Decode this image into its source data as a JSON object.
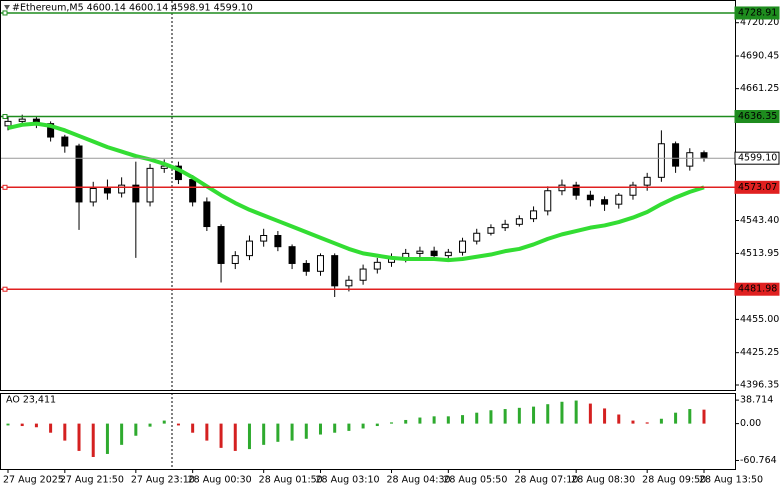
{
  "chart_data": [
    {
      "type": "candlestick",
      "title": "#Ethereum,M5  4600.14 4600.14 4598.91 4599.10",
      "categories": [
        "27 Aug 2025",
        null,
        null,
        null,
        "27 Aug 21:50",
        null,
        null,
        null,
        null,
        "27 Aug 23:10",
        null,
        null,
        null,
        "28 Aug 00:30",
        null,
        null,
        null,
        null,
        "28 Aug 01:50",
        null,
        null,
        null,
        "28 Aug 03:10",
        null,
        null,
        null,
        null,
        "28 Aug 04:30",
        null,
        null,
        null,
        "28 Aug 05:50",
        null,
        null,
        null,
        null,
        "28 Aug 07:10",
        null,
        null,
        null,
        "28 Aug 08:30",
        null,
        null,
        null,
        null,
        "28 Aug 09:50",
        null,
        null,
        null,
        "28 Aug 13:50"
      ],
      "open": [
        4628,
        4632,
        4634,
        4630,
        4618,
        4610,
        4560,
        4572,
        4568,
        4575,
        4560,
        4590,
        4592,
        4580,
        4560,
        4538,
        4505,
        4512,
        4525,
        4530,
        4520,
        4505,
        4498,
        4512,
        4485,
        4490,
        4500,
        4506,
        4510,
        4514,
        4516,
        4512,
        4515,
        4525,
        4532,
        4537,
        4540,
        4545,
        4552,
        4570,
        4575,
        4566,
        4562,
        4558,
        4566,
        4575,
        4582,
        4612,
        4592,
        4604
      ],
      "high": [
        4636,
        4638,
        4636,
        4632,
        4620,
        4612,
        4578,
        4580,
        4582,
        4596,
        4594,
        4598,
        4596,
        4584,
        4564,
        4540,
        4516,
        4530,
        4536,
        4534,
        4522,
        4508,
        4514,
        4514,
        4494,
        4504,
        4510,
        4514,
        4518,
        4520,
        4520,
        4518,
        4528,
        4536,
        4540,
        4544,
        4548,
        4556,
        4574,
        4580,
        4578,
        4570,
        4565,
        4568,
        4578,
        4586,
        4624,
        4614,
        4608,
        4606
      ],
      "low": [
        4624,
        4628,
        4626,
        4614,
        4604,
        4535,
        4556,
        4562,
        4564,
        4510,
        4556,
        4586,
        4576,
        4556,
        4534,
        4488,
        4500,
        4508,
        4520,
        4516,
        4500,
        4494,
        4494,
        4475,
        4480,
        4486,
        4496,
        4502,
        4506,
        4510,
        4508,
        4508,
        4512,
        4522,
        4530,
        4534,
        4538,
        4542,
        4548,
        4566,
        4562,
        4556,
        4552,
        4554,
        4562,
        4570,
        4578,
        4586,
        4588,
        4596
      ],
      "close": [
        4632,
        4634,
        4630,
        4618,
        4610,
        4560,
        4572,
        4568,
        4575,
        4560,
        4590,
        4592,
        4580,
        4560,
        4538,
        4505,
        4512,
        4525,
        4530,
        4520,
        4505,
        4498,
        4512,
        4485,
        4490,
        4500,
        4506,
        4510,
        4514,
        4516,
        4512,
        4515,
        4525,
        4532,
        4537,
        4540,
        4545,
        4552,
        4570,
        4575,
        4566,
        4562,
        4558,
        4566,
        4575,
        4582,
        4612,
        4592,
        4604,
        4599.1
      ],
      "ma_color": "#33dd33",
      "ma_values": [
        4626,
        4629,
        4630,
        4628,
        4624,
        4619,
        4614,
        4609,
        4605,
        4601,
        4598,
        4594,
        4589,
        4582,
        4574,
        4566,
        4559,
        4553,
        4548,
        4543,
        4538,
        4533,
        4528,
        4523,
        4518,
        4514,
        4512,
        4510,
        4509,
        4509,
        4509,
        4508,
        4509,
        4511,
        4513,
        4516,
        4518,
        4522,
        4527,
        4531,
        4534,
        4537,
        4539,
        4542,
        4546,
        4551,
        4558,
        4564,
        4569,
        4573
      ],
      "ylim": [
        4391.89,
        4739.61
      ],
      "yticks": [
        {
          "value": 4720.2,
          "label": "4720.20"
        },
        4690.45,
        4661.25,
        {
          "value": 4543.4,
          "label": "4543.40"
        },
        4513.95,
        {
          "value": 4455.0,
          "label": "4455.00"
        },
        4425.25,
        4396.35
      ],
      "levels": [
        {
          "value": 4728.91,
          "color": "#1e8c1e"
        },
        {
          "value": 4636.35,
          "color": "#1e8c1e"
        },
        {
          "value": 4599.1,
          "label": "4599.10",
          "color": "#000000"
        },
        {
          "value": 4573.07,
          "color": "#e02020"
        },
        {
          "value": 4481.98,
          "color": "#e02020"
        }
      ],
      "grid": false
    },
    {
      "type": "histogram",
      "title": "AO 23,411",
      "values": [
        -3,
        -4,
        -6,
        -15,
        -28,
        -45,
        -55,
        -50,
        -35,
        -20,
        -5,
        5,
        -3,
        -15,
        -28,
        -40,
        -45,
        -42,
        -35,
        -30,
        -28,
        -25,
        -18,
        -15,
        -12,
        -8,
        -4,
        2,
        6,
        10,
        12,
        12,
        14,
        18,
        22,
        24,
        26,
        28,
        32,
        36,
        38,
        33,
        25,
        15,
        5,
        2,
        8,
        18,
        24,
        23
      ],
      "up_color": "#2eaa2e",
      "down_color": "#d42020",
      "ylim": [
        -74.8,
        48.8
      ],
      "yticks": [
        38.714,
        {
          "value": 0,
          "label": "0.00"
        },
        -60.764
      ],
      "grid": false
    }
  ]
}
